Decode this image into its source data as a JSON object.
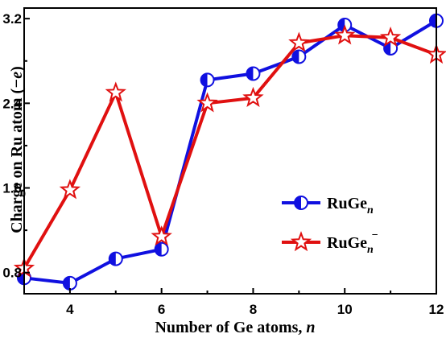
{
  "chart_data": {
    "type": "line",
    "xlabel": "Number of Ge atoms,",
    "xlabel_italic": "n",
    "ylabel": "Charge on Ru atom (",
    "ylabel_italic": "−e",
    "ylabel_close": ")",
    "xlim": [
      3,
      12
    ],
    "ylim": [
      0.6,
      3.3
    ],
    "xticks": [
      4,
      6,
      8,
      10,
      12
    ],
    "yticks": [
      0.8,
      1.6,
      2.4,
      3.2
    ],
    "xtick_labels": [
      "4",
      "6",
      "8",
      "10",
      "12"
    ],
    "ytick_labels": [
      "0.8",
      "1.6",
      "2.4",
      "3.2"
    ],
    "legend_position": "bottom-right",
    "series": [
      {
        "name": "RuGe",
        "name_sub": "n",
        "name_sup": "",
        "color": "#1010e0",
        "marker": "half-filled-circle",
        "x": [
          3,
          4,
          5,
          6,
          7,
          8,
          9,
          10,
          11,
          12
        ],
        "y": [
          0.75,
          0.7,
          0.93,
          1.02,
          2.62,
          2.68,
          2.84,
          3.14,
          2.92,
          3.18
        ]
      },
      {
        "name": "RuGe",
        "name_sub": "n",
        "name_sup": "−",
        "color": "#e01010",
        "marker": "star",
        "x": [
          3,
          4,
          5,
          6,
          7,
          8,
          9,
          10,
          11,
          12
        ],
        "y": [
          0.84,
          1.58,
          2.5,
          1.14,
          2.4,
          2.45,
          2.97,
          3.04,
          3.02,
          2.86
        ]
      }
    ]
  }
}
